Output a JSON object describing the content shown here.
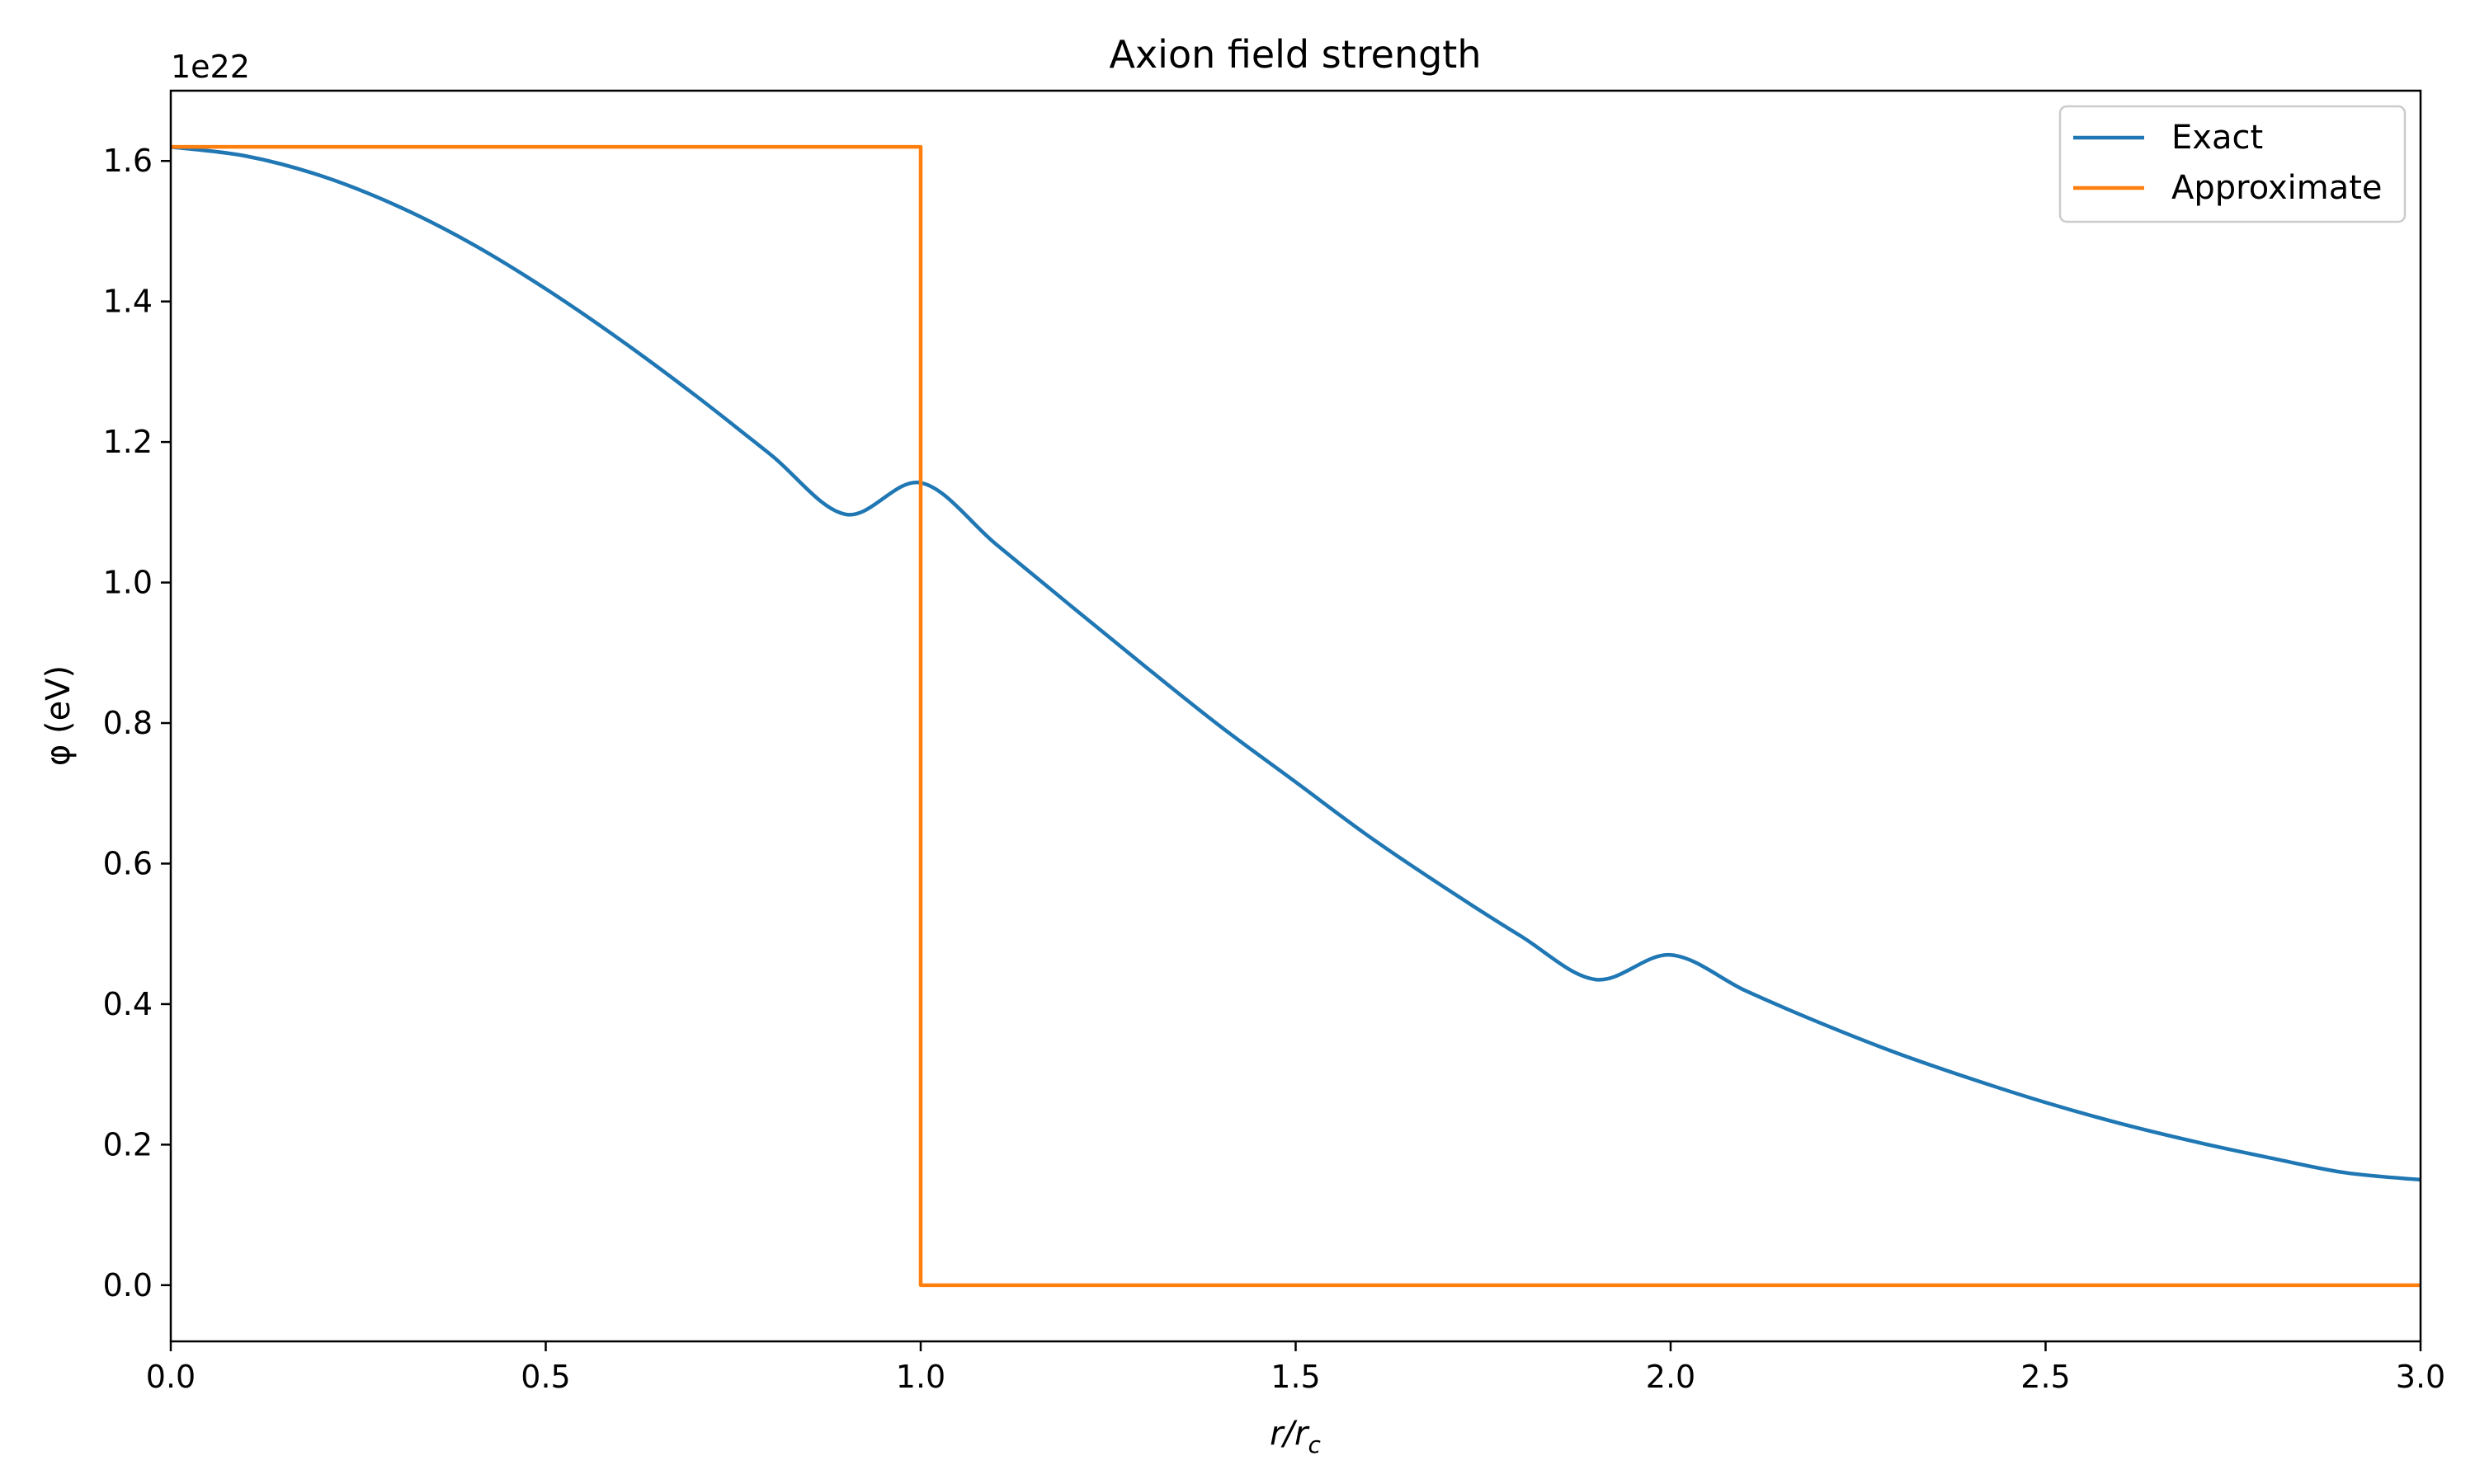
{
  "chart_data": {
    "type": "line",
    "title": "Axion field strength",
    "xlabel": {
      "base": "r/r",
      "sub": "c"
    },
    "ylabel": "φ (eV)",
    "y_offset_label": "1e22",
    "xlim": [
      0.0,
      3.0
    ],
    "ylim": [
      -0.08,
      1.7
    ],
    "xticks": [
      0.0,
      0.5,
      1.0,
      1.5,
      2.0,
      2.5,
      3.0
    ],
    "xtick_labels": [
      "0.0",
      "0.5",
      "1.0",
      "1.5",
      "2.0",
      "2.5",
      "3.0"
    ],
    "yticks": [
      0.0,
      0.2,
      0.4,
      0.6,
      0.8,
      1.0,
      1.2,
      1.4,
      1.6
    ],
    "ytick_labels": [
      "0.0",
      "0.2",
      "0.4",
      "0.6",
      "0.8",
      "1.0",
      "1.2",
      "1.4",
      "1.6"
    ],
    "grid": false,
    "legend_position": "top-right",
    "series": [
      {
        "name": "Exact",
        "color": "#1f77b4",
        "x": [
          0.0,
          0.1,
          0.2,
          0.3,
          0.4,
          0.5,
          0.6,
          0.7,
          0.8,
          0.9,
          1.0,
          1.1,
          1.2,
          1.3,
          1.4,
          1.5,
          1.6,
          1.7,
          1.8,
          1.9,
          2.0,
          2.1,
          2.2,
          2.3,
          2.4,
          2.5,
          2.6,
          2.7,
          2.8,
          2.9,
          3.0
        ],
        "y": [
          1.62,
          1.607,
          1.579,
          1.537,
          1.483,
          1.418,
          1.345,
          1.266,
          1.182,
          1.097,
          1.142,
          1.055,
          0.967,
          0.88,
          0.795,
          0.716,
          0.637,
          0.565,
          0.497,
          0.435,
          0.47,
          0.419,
          0.373,
          0.331,
          0.294,
          0.26,
          0.23,
          0.204,
          0.181,
          0.16,
          0.15
        ]
      },
      {
        "name": "Approximate",
        "color": "#ff7f0e",
        "x": [
          0.0,
          1.0,
          1.0,
          3.0
        ],
        "y": [
          1.62,
          1.62,
          0.0,
          0.0
        ]
      }
    ]
  }
}
